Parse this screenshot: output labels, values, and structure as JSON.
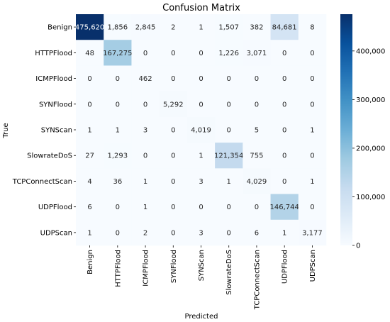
{
  "chart_data": {
    "type": "heatmap",
    "title": "Confusion Matrix",
    "xlabel": "Predicted",
    "ylabel": "True",
    "x_categories": [
      "Benign",
      "HTTPFlood",
      "ICMPFlood",
      "SYNFlood",
      "SYNScan",
      "SlowrateDoS",
      "TCPConnectScan",
      "UDPFlood",
      "UDPScan"
    ],
    "y_categories": [
      "Benign",
      "HTTPFlood",
      "ICMPFlood",
      "SYNFlood",
      "SYNScan",
      "SlowrateDoS",
      "TCPConnectScan",
      "UDPFlood",
      "UDPScan"
    ],
    "values": [
      [
        475620,
        1856,
        2845,
        2,
        1,
        1507,
        382,
        84681,
        8
      ],
      [
        48,
        167275,
        0,
        0,
        0,
        1226,
        3071,
        0,
        0
      ],
      [
        0,
        0,
        462,
        0,
        0,
        0,
        0,
        0,
        0
      ],
      [
        0,
        0,
        0,
        5292,
        0,
        0,
        0,
        0,
        0
      ],
      [
        1,
        1,
        3,
        0,
        4019,
        0,
        5,
        0,
        1
      ],
      [
        27,
        1293,
        0,
        0,
        1,
        121354,
        755,
        0,
        0
      ],
      [
        4,
        36,
        1,
        0,
        3,
        1,
        4029,
        0,
        1
      ],
      [
        6,
        0,
        1,
        0,
        0,
        0,
        0,
        146744,
        0
      ],
      [
        1,
        0,
        2,
        0,
        3,
        0,
        6,
        1,
        3177
      ]
    ],
    "colorbar": {
      "min": 0,
      "max": 475620,
      "ticks": [
        0,
        100000,
        200000,
        300000,
        400000
      ],
      "tick_labels": [
        "0",
        "100,000",
        "200,000",
        "300,000",
        "400,000"
      ],
      "colormap": "Blues"
    }
  }
}
